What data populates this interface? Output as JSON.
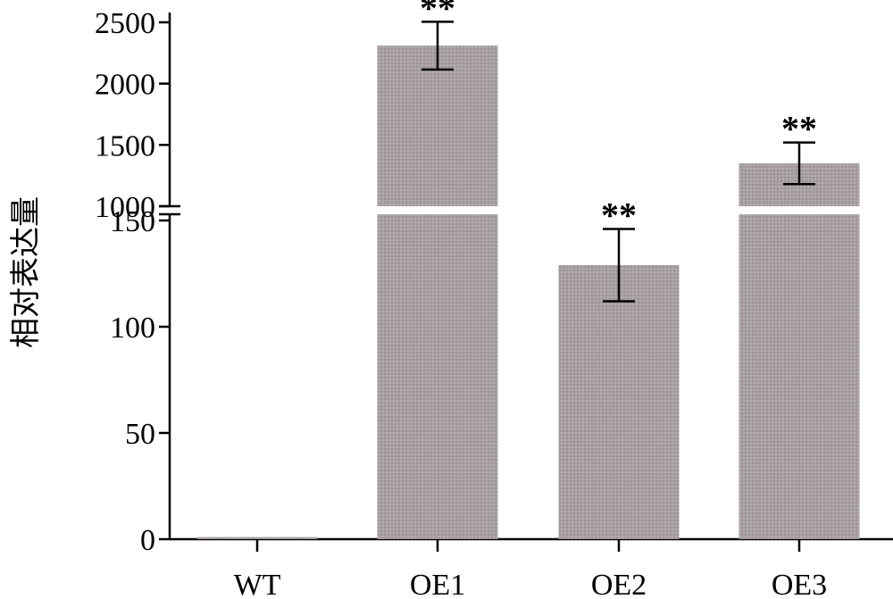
{
  "chart_data": {
    "type": "bar",
    "ylabel": "相对表达量",
    "xlabel": "",
    "title": "",
    "categories": [
      "WT",
      "OE1",
      "OE2",
      "OE3"
    ],
    "values": [
      1,
      2310,
      129,
      1350
    ],
    "error": [
      0,
      195,
      17,
      170
    ],
    "significance": [
      "",
      "**",
      "**",
      "**"
    ],
    "axis_break": {
      "lower_range": [
        0,
        150
      ],
      "upper_range": [
        1000,
        2500
      ]
    },
    "lower_ticks": [
      0,
      50,
      100,
      150
    ],
    "upper_ticks": [
      1000,
      1500,
      2000,
      2500
    ],
    "bar_color": "#a79fa2",
    "grid": false
  }
}
